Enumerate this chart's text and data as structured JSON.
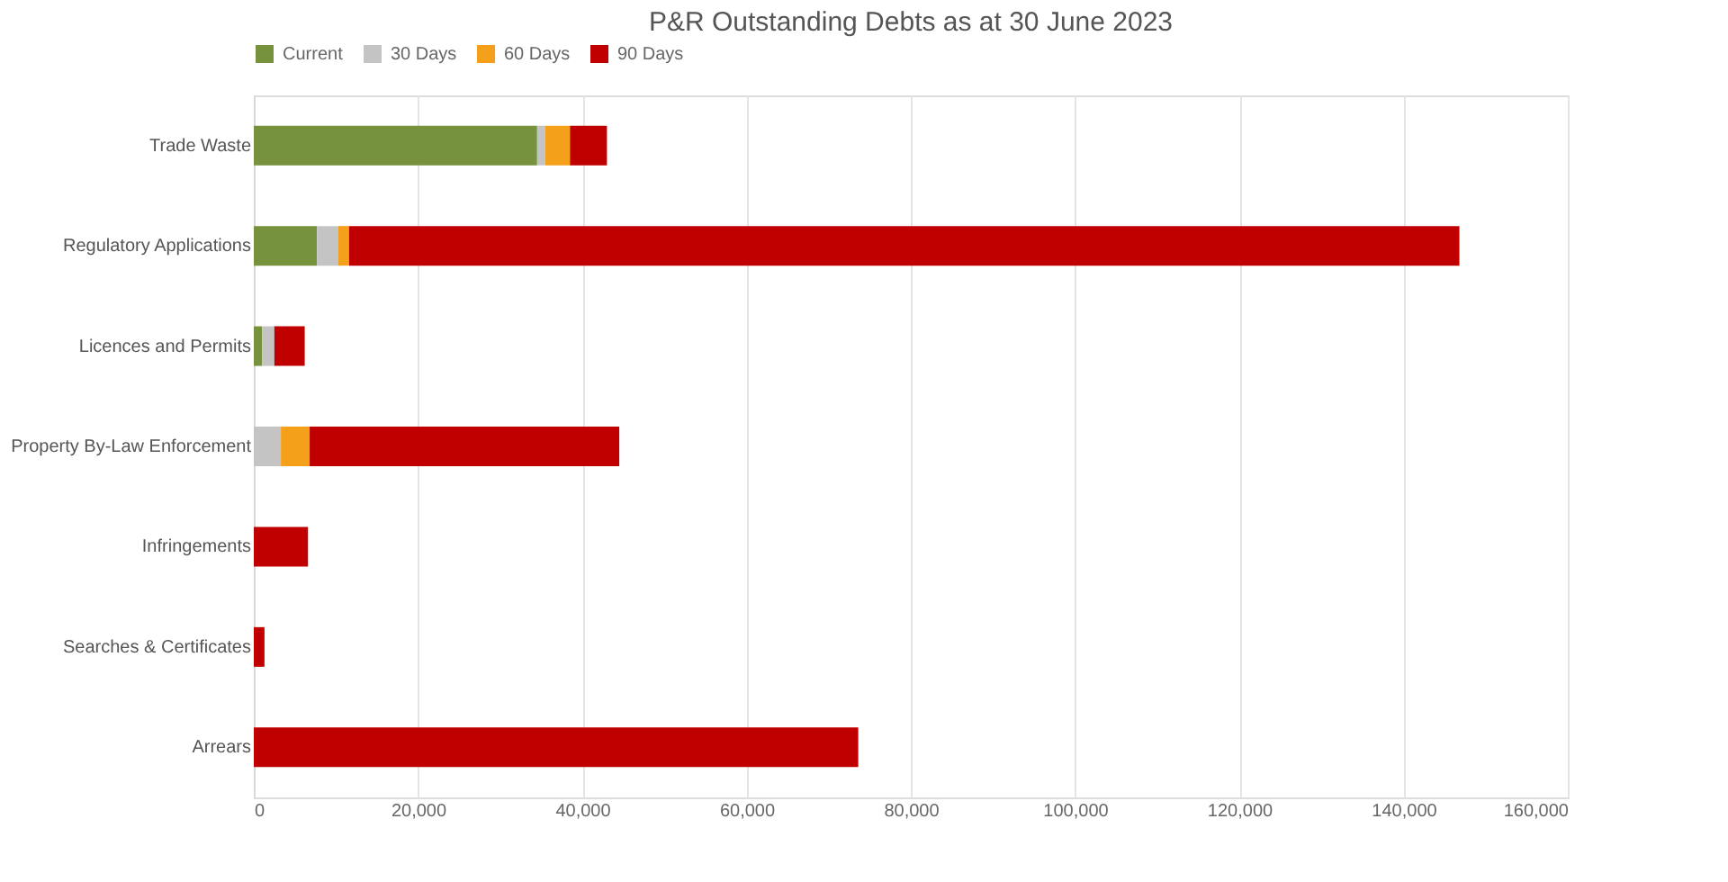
{
  "chart_data": {
    "type": "bar",
    "title": "P&R Outstanding Debts as at 30 June 2023",
    "orientation": "horizontal",
    "stacked": true,
    "categories": [
      "Trade Waste",
      "Regulatory Applications",
      "Licences and Permits",
      "Property By-Law Enforcement",
      "Infringements",
      "Searches & Certificates",
      "Arrears"
    ],
    "series": [
      {
        "name": "Current",
        "color": "#76923c",
        "values": [
          34500,
          7700,
          1000,
          0,
          0,
          0,
          0
        ]
      },
      {
        "name": "30 Days",
        "color": "#c4c4c4",
        "values": [
          1000,
          2600,
          1500,
          3300,
          0,
          0,
          0
        ]
      },
      {
        "name": "60 Days",
        "color": "#f5a01a",
        "values": [
          3000,
          1300,
          0,
          3500,
          0,
          0,
          0
        ]
      },
      {
        "name": "90 Days",
        "color": "#c00000",
        "values": [
          4500,
          135200,
          3700,
          37700,
          6600,
          1300,
          73600
        ]
      }
    ],
    "xlim": [
      0,
      160000
    ],
    "xticks": [
      0,
      {
        "value": 20000,
        "label": "20,000"
      },
      {
        "value": 40000,
        "label": "40,000"
      },
      {
        "value": 60000,
        "label": "60,000"
      },
      {
        "value": 80000,
        "label": "80,000"
      },
      {
        "value": 100000,
        "label": "100,000"
      },
      {
        "value": 120000,
        "label": "120,000"
      },
      {
        "value": 140000,
        "label": "140,000"
      },
      {
        "value": 160000,
        "label": "160,000"
      }
    ],
    "grid": "x",
    "legend": "top"
  }
}
